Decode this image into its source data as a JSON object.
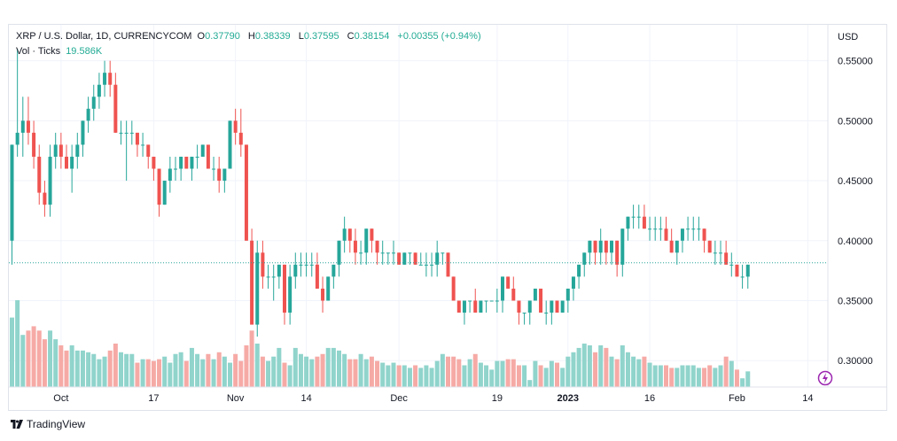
{
  "legend": {
    "symbol": "XRP / U.S. Dollar, 1D, CURRENCYCOM",
    "o_label": "O",
    "o_value": "0.37790",
    "h_label": "H",
    "h_value": "0.38339",
    "l_label": "L",
    "l_value": "0.37595",
    "c_label": "C",
    "c_value": "0.38154",
    "change": "+0.00355 (+0.94%)",
    "vol_label": "Vol · Ticks",
    "vol_value": "19.586K"
  },
  "footer": {
    "brand": "TradingView"
  },
  "colors": {
    "up": "#26a69a",
    "down": "#ef5350",
    "up_vol": "#90d4cc",
    "down_vol": "#f6aaa6",
    "grid": "#f0f3fa",
    "price_line": "#26a69a"
  },
  "chart_data": {
    "type": "candlestick",
    "currency_label": "USD",
    "y_ticks": [
      "0.55000",
      "0.50000",
      "0.45000",
      "0.40000",
      "0.35000",
      "0.30000"
    ],
    "y_tick_values": [
      0.55,
      0.5,
      0.45,
      0.4,
      0.35,
      0.3
    ],
    "ylim": [
      0.278,
      0.58
    ],
    "x_ticks": [
      {
        "label": "Oct",
        "index": 9,
        "bold": false
      },
      {
        "label": "17",
        "index": 26,
        "bold": false
      },
      {
        "label": "Nov",
        "index": 41,
        "bold": false
      },
      {
        "label": "14",
        "index": 54,
        "bold": false
      },
      {
        "label": "Dec",
        "index": 71,
        "bold": false
      },
      {
        "label": "19",
        "index": 89,
        "bold": false
      },
      {
        "label": "2023",
        "index": 102,
        "bold": true
      },
      {
        "label": "16",
        "index": 117,
        "bold": false
      },
      {
        "label": "Feb",
        "index": 133,
        "bold": false
      },
      {
        "label": "14",
        "index": 146,
        "bold": false
      }
    ],
    "last_price": 0.38154,
    "candles": [
      [
        0.4,
        0.48,
        0.38,
        0.48,
        8
      ],
      [
        0.48,
        0.56,
        0.47,
        0.49,
        10
      ],
      [
        0.49,
        0.52,
        0.47,
        0.5,
        6
      ],
      [
        0.5,
        0.52,
        0.48,
        0.49,
        6.5
      ],
      [
        0.49,
        0.5,
        0.46,
        0.47,
        7
      ],
      [
        0.47,
        0.48,
        0.43,
        0.44,
        6.5
      ],
      [
        0.44,
        0.45,
        0.42,
        0.43,
        5.5
      ],
      [
        0.43,
        0.48,
        0.42,
        0.47,
        6.5
      ],
      [
        0.47,
        0.49,
        0.46,
        0.48,
        5.5
      ],
      [
        0.48,
        0.49,
        0.46,
        0.47,
        4.8
      ],
      [
        0.47,
        0.48,
        0.46,
        0.46,
        4.2
      ],
      [
        0.46,
        0.48,
        0.44,
        0.47,
        4.8
      ],
      [
        0.47,
        0.49,
        0.46,
        0.48,
        4.2
      ],
      [
        0.48,
        0.5,
        0.47,
        0.5,
        4.2
      ],
      [
        0.5,
        0.52,
        0.49,
        0.51,
        4
      ],
      [
        0.51,
        0.53,
        0.5,
        0.52,
        3.8
      ],
      [
        0.52,
        0.54,
        0.51,
        0.53,
        3.2
      ],
      [
        0.53,
        0.55,
        0.52,
        0.54,
        3.5
      ],
      [
        0.54,
        0.55,
        0.52,
        0.53,
        4.2
      ],
      [
        0.53,
        0.54,
        0.49,
        0.49,
        5
      ],
      [
        0.49,
        0.5,
        0.48,
        0.49,
        4
      ],
      [
        0.49,
        0.5,
        0.45,
        0.49,
        3.8
      ],
      [
        0.49,
        0.5,
        0.48,
        0.49,
        3.8
      ],
      [
        0.49,
        0.49,
        0.47,
        0.48,
        2.8
      ],
      [
        0.48,
        0.49,
        0.47,
        0.48,
        3.2
      ],
      [
        0.48,
        0.48,
        0.46,
        0.47,
        3.2
      ],
      [
        0.47,
        0.47,
        0.45,
        0.46,
        3
      ],
      [
        0.46,
        0.46,
        0.42,
        0.43,
        3.2
      ],
      [
        0.43,
        0.45,
        0.43,
        0.45,
        3.5
      ],
      [
        0.45,
        0.47,
        0.44,
        0.46,
        2.8
      ],
      [
        0.46,
        0.47,
        0.45,
        0.46,
        3.8
      ],
      [
        0.46,
        0.47,
        0.45,
        0.47,
        4
      ],
      [
        0.47,
        0.47,
        0.46,
        0.46,
        3
      ],
      [
        0.46,
        0.47,
        0.45,
        0.47,
        4.5
      ],
      [
        0.47,
        0.48,
        0.46,
        0.47,
        3.8
      ],
      [
        0.47,
        0.48,
        0.47,
        0.48,
        3.2
      ],
      [
        0.48,
        0.48,
        0.46,
        0.46,
        3.8
      ],
      [
        0.46,
        0.47,
        0.45,
        0.46,
        3.2
      ],
      [
        0.46,
        0.47,
        0.44,
        0.45,
        4
      ],
      [
        0.45,
        0.46,
        0.44,
        0.46,
        3.5
      ],
      [
        0.46,
        0.5,
        0.46,
        0.5,
        2.8
      ],
      [
        0.5,
        0.51,
        0.48,
        0.49,
        3.8
      ],
      [
        0.49,
        0.51,
        0.47,
        0.48,
        3
      ],
      [
        0.48,
        0.48,
        0.4,
        0.4,
        4.8
      ],
      [
        0.4,
        0.41,
        0.33,
        0.33,
        6.5
      ],
      [
        0.33,
        0.4,
        0.32,
        0.39,
        5
      ],
      [
        0.39,
        0.4,
        0.36,
        0.37,
        3.5
      ],
      [
        0.37,
        0.38,
        0.36,
        0.37,
        3
      ],
      [
        0.37,
        0.38,
        0.35,
        0.37,
        3.5
      ],
      [
        0.37,
        0.38,
        0.36,
        0.38,
        4.5
      ],
      [
        0.38,
        0.38,
        0.33,
        0.34,
        2.8
      ],
      [
        0.34,
        0.38,
        0.33,
        0.37,
        2.5
      ],
      [
        0.37,
        0.39,
        0.36,
        0.38,
        4.5
      ],
      [
        0.38,
        0.39,
        0.37,
        0.38,
        3.8
      ],
      [
        0.38,
        0.39,
        0.37,
        0.38,
        3.5
      ],
      [
        0.38,
        0.39,
        0.37,
        0.38,
        3.2
      ],
      [
        0.38,
        0.39,
        0.36,
        0.36,
        3.5
      ],
      [
        0.36,
        0.37,
        0.34,
        0.35,
        3.8
      ],
      [
        0.35,
        0.37,
        0.35,
        0.37,
        4.5
      ],
      [
        0.37,
        0.38,
        0.36,
        0.38,
        4.5
      ],
      [
        0.38,
        0.4,
        0.37,
        0.4,
        4.2
      ],
      [
        0.4,
        0.42,
        0.39,
        0.41,
        3.8
      ],
      [
        0.41,
        0.41,
        0.39,
        0.4,
        3.2
      ],
      [
        0.4,
        0.41,
        0.38,
        0.39,
        3.2
      ],
      [
        0.39,
        0.4,
        0.38,
        0.39,
        3.8
      ],
      [
        0.39,
        0.41,
        0.38,
        0.41,
        3.2
      ],
      [
        0.41,
        0.41,
        0.39,
        0.4,
        3.5
      ],
      [
        0.4,
        0.4,
        0.38,
        0.39,
        3
      ],
      [
        0.39,
        0.4,
        0.38,
        0.39,
        2.8
      ],
      [
        0.39,
        0.39,
        0.38,
        0.39,
        2.5
      ],
      [
        0.39,
        0.4,
        0.38,
        0.39,
        2.8
      ],
      [
        0.39,
        0.39,
        0.38,
        0.38,
        2.5
      ],
      [
        0.38,
        0.39,
        0.38,
        0.39,
        2.5
      ],
      [
        0.39,
        0.39,
        0.38,
        0.39,
        2.2
      ],
      [
        0.39,
        0.39,
        0.38,
        0.38,
        2.5
      ],
      [
        0.38,
        0.39,
        0.38,
        0.38,
        2.2
      ],
      [
        0.38,
        0.39,
        0.37,
        0.38,
        2.5
      ],
      [
        0.38,
        0.39,
        0.37,
        0.38,
        2.2
      ],
      [
        0.38,
        0.4,
        0.37,
        0.39,
        3
      ],
      [
        0.39,
        0.39,
        0.38,
        0.39,
        3.8
      ],
      [
        0.39,
        0.39,
        0.37,
        0.37,
        3.5
      ],
      [
        0.37,
        0.37,
        0.35,
        0.35,
        3.5
      ],
      [
        0.35,
        0.35,
        0.34,
        0.34,
        3.2
      ],
      [
        0.34,
        0.35,
        0.33,
        0.35,
        2.5
      ],
      [
        0.35,
        0.35,
        0.34,
        0.35,
        3.2
      ],
      [
        0.35,
        0.36,
        0.34,
        0.34,
        3.8
      ],
      [
        0.34,
        0.35,
        0.34,
        0.35,
        2.8
      ],
      [
        0.35,
        0.35,
        0.34,
        0.35,
        2.5
      ],
      [
        0.35,
        0.35,
        0.35,
        0.35,
        2
      ],
      [
        0.35,
        0.36,
        0.34,
        0.35,
        3
      ],
      [
        0.35,
        0.37,
        0.34,
        0.37,
        3
      ],
      [
        0.37,
        0.37,
        0.36,
        0.36,
        3.2
      ],
      [
        0.36,
        0.37,
        0.35,
        0.35,
        3.2
      ],
      [
        0.35,
        0.35,
        0.33,
        0.34,
        2.5
      ],
      [
        0.34,
        0.34,
        0.33,
        0.34,
        2.5
      ],
      [
        0.34,
        0.35,
        0.33,
        0.35,
        0.8
      ],
      [
        0.35,
        0.36,
        0.35,
        0.36,
        3
      ],
      [
        0.36,
        0.36,
        0.34,
        0.34,
        2.5
      ],
      [
        0.34,
        0.35,
        0.33,
        0.34,
        2.2
      ],
      [
        0.34,
        0.35,
        0.33,
        0.35,
        3
      ],
      [
        0.35,
        0.35,
        0.34,
        0.34,
        2.8
      ],
      [
        0.34,
        0.35,
        0.34,
        0.35,
        2.2
      ],
      [
        0.35,
        0.36,
        0.34,
        0.36,
        3.5
      ],
      [
        0.36,
        0.37,
        0.35,
        0.37,
        4
      ],
      [
        0.37,
        0.38,
        0.36,
        0.38,
        4.5
      ],
      [
        0.38,
        0.39,
        0.37,
        0.39,
        5
      ],
      [
        0.39,
        0.4,
        0.38,
        0.4,
        4.8
      ],
      [
        0.4,
        0.4,
        0.38,
        0.39,
        4
      ],
      [
        0.39,
        0.41,
        0.38,
        0.4,
        4.8
      ],
      [
        0.4,
        0.4,
        0.38,
        0.39,
        4.5
      ],
      [
        0.39,
        0.4,
        0.38,
        0.4,
        3.5
      ],
      [
        0.4,
        0.4,
        0.37,
        0.38,
        3.2
      ],
      [
        0.38,
        0.41,
        0.37,
        0.41,
        4.8
      ],
      [
        0.41,
        0.42,
        0.4,
        0.42,
        4
      ],
      [
        0.42,
        0.43,
        0.41,
        0.42,
        3.5
      ],
      [
        0.42,
        0.43,
        0.41,
        0.42,
        3.2
      ],
      [
        0.42,
        0.43,
        0.41,
        0.41,
        3.5
      ],
      [
        0.41,
        0.42,
        0.4,
        0.41,
        2.8
      ],
      [
        0.41,
        0.42,
        0.4,
        0.41,
        2.5
      ],
      [
        0.41,
        0.42,
        0.4,
        0.41,
        2.5
      ],
      [
        0.41,
        0.42,
        0.4,
        0.4,
        2.5
      ],
      [
        0.4,
        0.41,
        0.39,
        0.39,
        2.2
      ],
      [
        0.39,
        0.4,
        0.38,
        0.4,
        2.2
      ],
      [
        0.4,
        0.41,
        0.39,
        0.41,
        2.5
      ],
      [
        0.41,
        0.42,
        0.4,
        0.41,
        2.5
      ],
      [
        0.41,
        0.42,
        0.4,
        0.41,
        2.5
      ],
      [
        0.41,
        0.42,
        0.4,
        0.41,
        2.2
      ],
      [
        0.41,
        0.41,
        0.39,
        0.4,
        2.2
      ],
      [
        0.4,
        0.4,
        0.39,
        0.39,
        2.5
      ],
      [
        0.39,
        0.4,
        0.38,
        0.39,
        2.2
      ],
      [
        0.39,
        0.4,
        0.38,
        0.39,
        2.5
      ],
      [
        0.39,
        0.4,
        0.38,
        0.38,
        3.5
      ],
      [
        0.38,
        0.39,
        0.37,
        0.38,
        3
      ],
      [
        0.38,
        0.38,
        0.37,
        0.37,
        2
      ],
      [
        0.37,
        0.38,
        0.36,
        0.37,
        1
      ],
      [
        0.37,
        0.38,
        0.36,
        0.38,
        1.8
      ]
    ]
  }
}
